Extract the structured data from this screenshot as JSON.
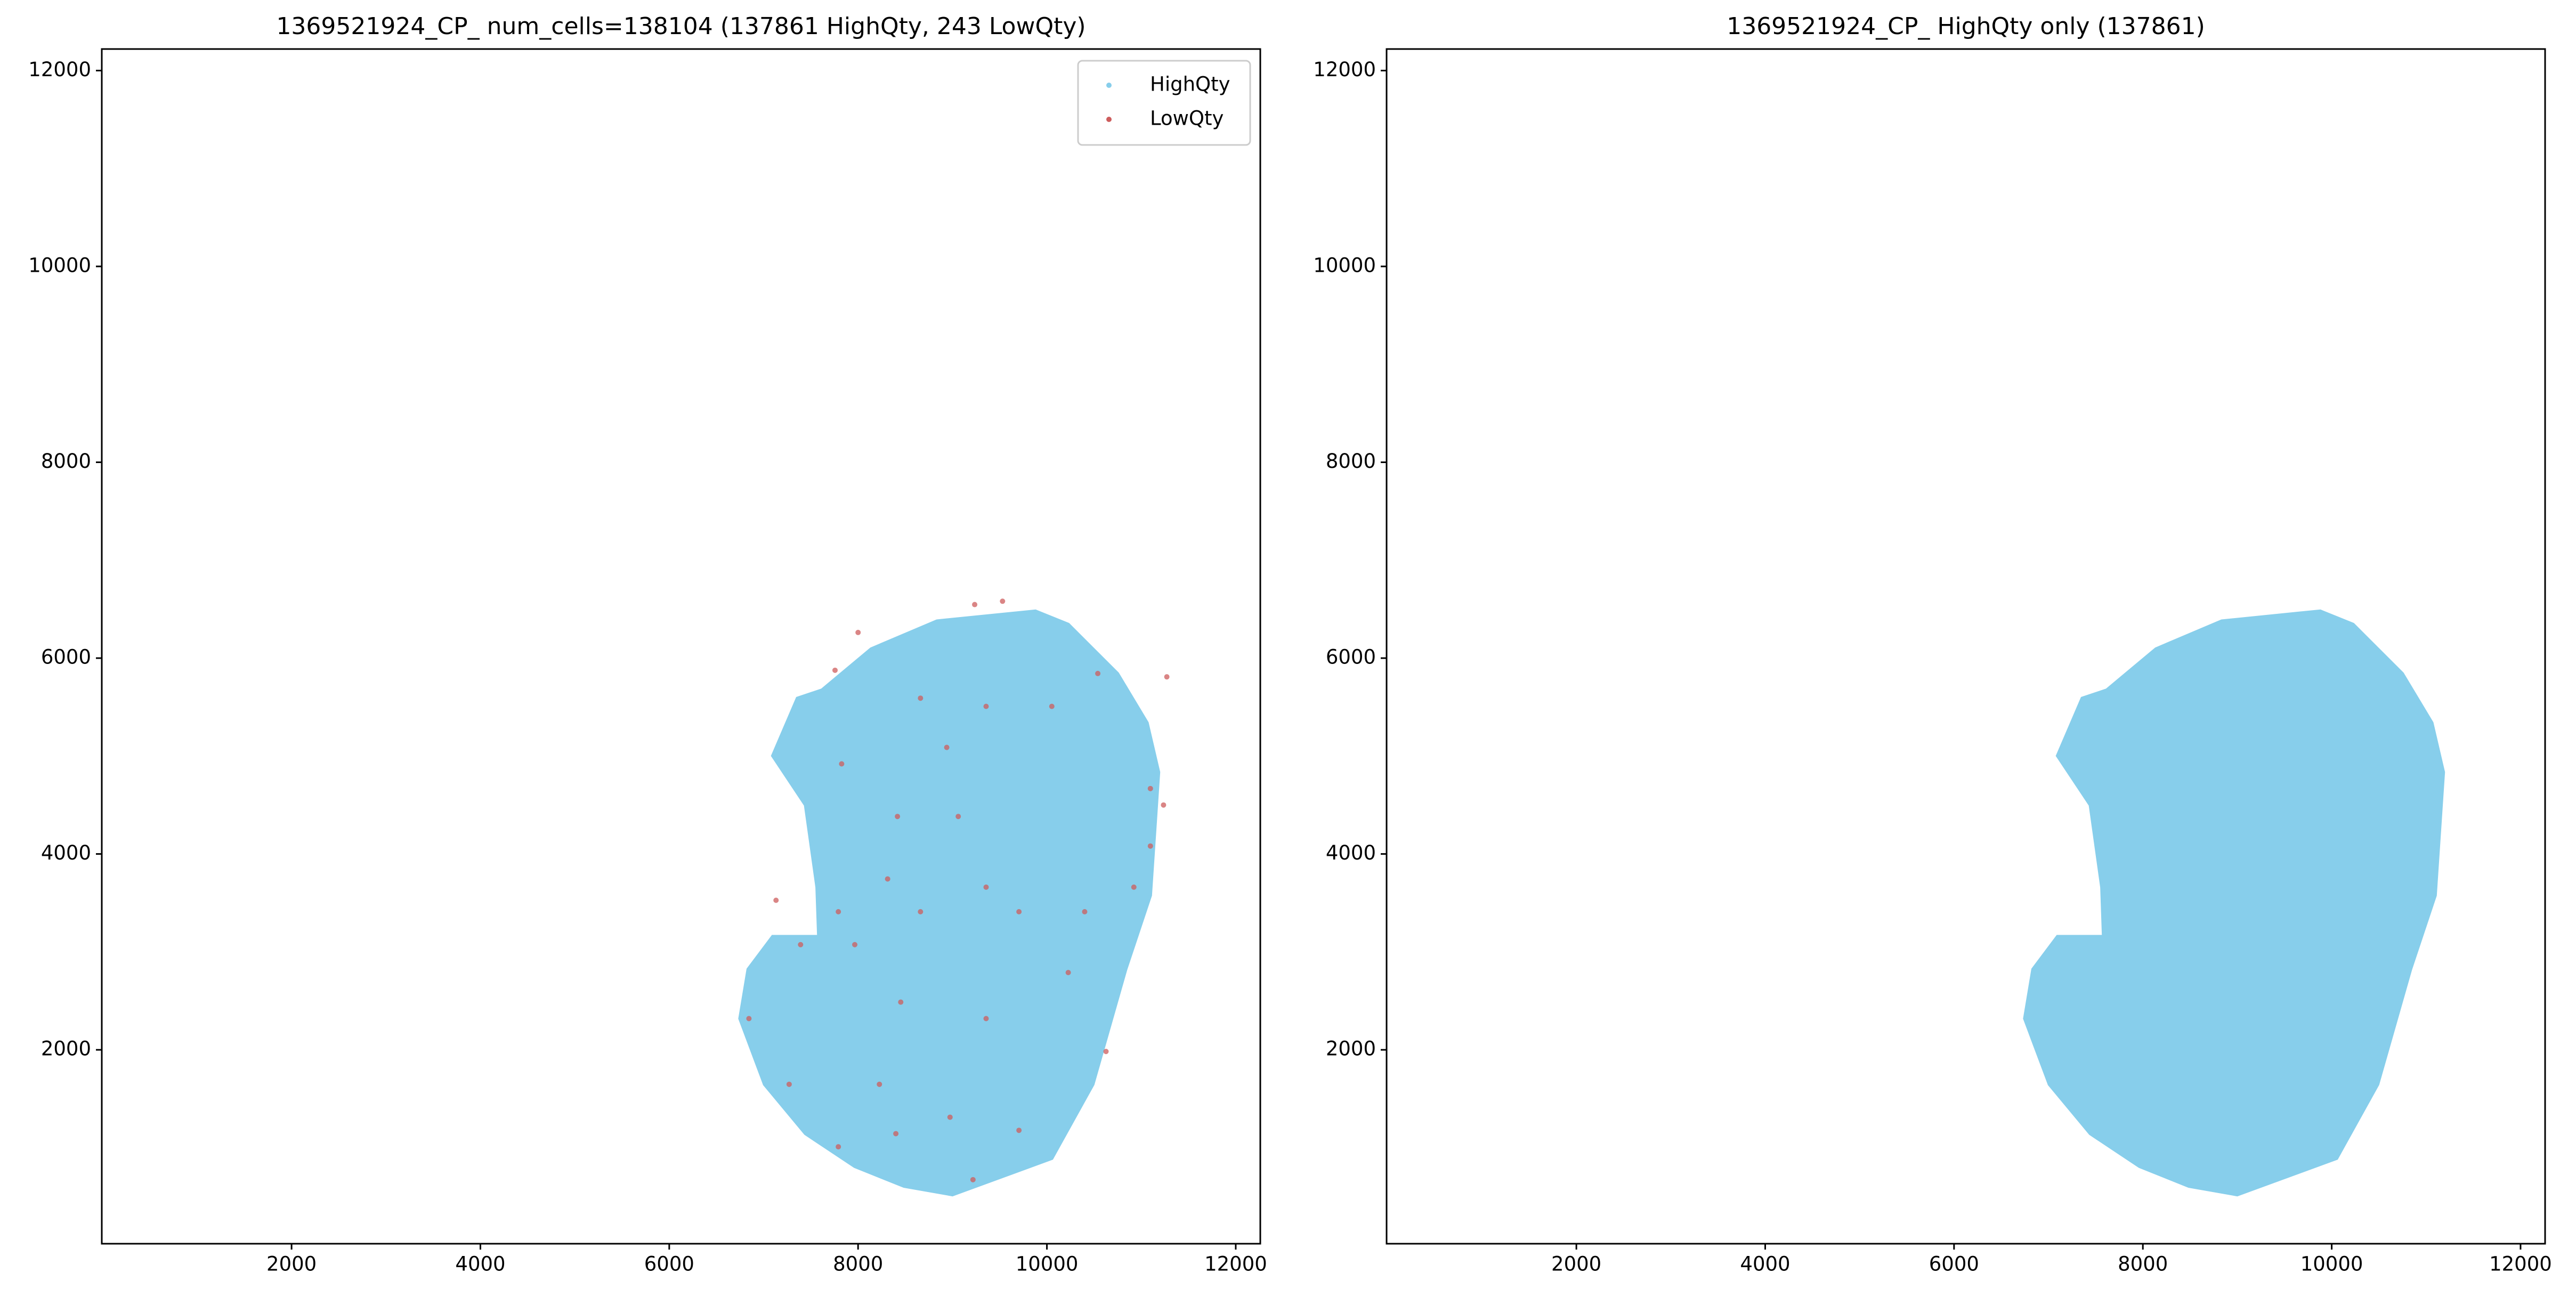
{
  "chart_data": [
    {
      "type": "scatter",
      "title": "1369521924_CP_ num_cells=138104 (137861 HighQty, 243 LowQty)",
      "xlim": [
        -10,
        12260
      ],
      "ylim": [
        20,
        12220
      ],
      "xticks": [
        2000,
        4000,
        6000,
        8000,
        10000,
        12000
      ],
      "yticks": [
        2000,
        4000,
        6000,
        8000,
        10000,
        12000
      ],
      "legend": "upper right",
      "series": [
        {
          "name": "HighQty",
          "color": "#87ceeb",
          "style": "region",
          "x": [
            9000,
            10052,
            10487,
            10835,
            11096,
            11183,
            11061,
            10748,
            10226,
            9878,
            8835,
            8139,
            7617,
            7357,
            7096,
            7443,
            7565,
            7583,
            7096,
            6835,
            6748,
            7009,
            7443,
            7965,
            8487
          ],
          "y": [
            520,
            892,
            1648,
            2822,
            3577,
            4835,
            5339,
            5842,
            6345,
            6480,
            6379,
            6094,
            5674,
            5590,
            5003,
            4500,
            3661,
            3157,
            3157,
            2822,
            2319,
            1648,
            1144,
            809,
            607
          ]
        },
        {
          "name": "LowQty",
          "color": "#cd5c5c",
          "style": "points",
          "x": [
            9235,
            9530,
            8000,
            7756,
            8661,
            9356,
            10052,
            10539,
            11270,
            11096,
            7826,
            8939,
            8417,
            9061,
            8313,
            9356,
            7791,
            8661,
            9704,
            10400,
            7131,
            7391,
            6844,
            7965,
            8452,
            9356,
            10226,
            10626,
            7270,
            8226,
            7791,
            8400,
            8974,
            9704,
            9217,
            11096,
            11235,
            10921
          ],
          "y": [
            6547,
            6581,
            6262,
            5876,
            5591,
            5507,
            5507,
            5843,
            5809,
            4668,
            4920,
            5088,
            4383,
            4383,
            3745,
            3661,
            3410,
            3410,
            3410,
            3410,
            3527,
            3074,
            2319,
            3074,
            2487,
            2319,
            2789,
            1983,
            1648,
            1648,
            1010,
            1144,
            1312,
            1178,
            674,
            4081,
            4500,
            3661
          ]
        }
      ]
    },
    {
      "type": "scatter",
      "title": "1369521924_CP_ HighQty only (137861)",
      "xlim": [
        -10,
        12260
      ],
      "ylim": [
        20,
        12220
      ],
      "xticks": [
        2000,
        4000,
        6000,
        8000,
        10000,
        12000
      ],
      "yticks": [
        2000,
        4000,
        6000,
        8000,
        10000,
        12000
      ],
      "series": [
        {
          "color": "#87ceeb",
          "style": "region",
          "x": [
            9000,
            10052,
            10487,
            10835,
            11096,
            11183,
            11061,
            10748,
            10226,
            9878,
            8835,
            8139,
            7617,
            7357,
            7096,
            7443,
            7565,
            7583,
            7096,
            6835,
            6748,
            7009,
            7443,
            7965,
            8487
          ],
          "y": [
            520,
            892,
            1648,
            2822,
            3577,
            4835,
            5339,
            5842,
            6345,
            6480,
            6379,
            6094,
            5674,
            5590,
            5003,
            4500,
            3661,
            3157,
            3157,
            2822,
            2319,
            1648,
            1144,
            809,
            607
          ]
        }
      ]
    }
  ]
}
